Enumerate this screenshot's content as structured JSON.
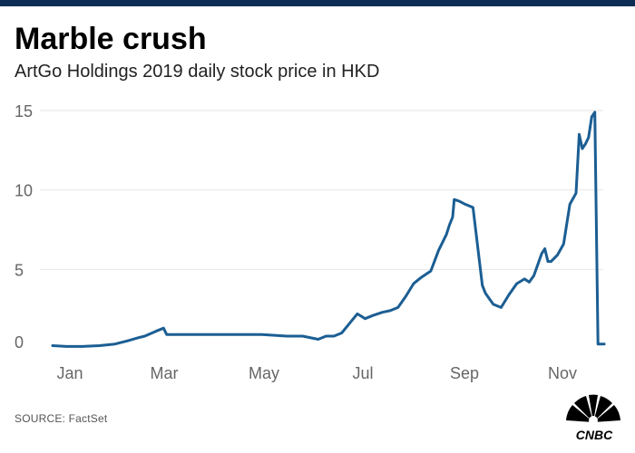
{
  "header": {
    "title": "Marble crush",
    "subtitle": "ArtGo Holdings 2019 daily stock price in HKD"
  },
  "footer": {
    "source": "SOURCE: FactSet",
    "logo_text": "CNBC"
  },
  "colors": {
    "line": "#1b5e93",
    "top_bar": "#0d2d55",
    "grid": "#e6e6e6",
    "tick": "#666666"
  },
  "chart_data": {
    "type": "line",
    "title": "Marble crush",
    "subtitle": "ArtGo Holdings 2019 daily stock price in HKD",
    "xlabel": "",
    "ylabel": "",
    "x_tick_labels": [
      "Jan",
      "Mar",
      "May",
      "Jul",
      "Sep",
      "Nov"
    ],
    "y_ticks": [
      0,
      5,
      10,
      15
    ],
    "ylim": [
      0,
      15
    ],
    "xlim": [
      "2019-01-01",
      "2019-12-31"
    ],
    "grid": true,
    "legend": "none",
    "series": [
      {
        "x": [
          "2019-01-01",
          "2019-01-10",
          "2019-01-20",
          "2019-01-31",
          "2019-02-10",
          "2019-02-18",
          "2019-02-25",
          "2019-03-01",
          "2019-03-08",
          "2019-03-13",
          "2019-03-15",
          "2019-03-20",
          "2019-03-31",
          "2019-04-15",
          "2019-04-30",
          "2019-05-15",
          "2019-05-31",
          "2019-06-10",
          "2019-06-20",
          "2019-06-25",
          "2019-06-30",
          "2019-07-05",
          "2019-07-10",
          "2019-07-15",
          "2019-07-20",
          "2019-07-25",
          "2019-07-31",
          "2019-08-05",
          "2019-08-10",
          "2019-08-15",
          "2019-08-20",
          "2019-08-25",
          "2019-08-31",
          "2019-09-05",
          "2019-09-10",
          "2019-09-12",
          "2019-09-14",
          "2019-09-15",
          "2019-09-18",
          "2019-09-22",
          "2019-09-27",
          "2019-10-03",
          "2019-10-05",
          "2019-10-10",
          "2019-10-15",
          "2019-10-20",
          "2019-10-25",
          "2019-10-30",
          "2019-11-02",
          "2019-11-05",
          "2019-11-10",
          "2019-11-12",
          "2019-11-14",
          "2019-11-16",
          "2019-11-20",
          "2019-11-24",
          "2019-11-28",
          "2019-12-02",
          "2019-12-04",
          "2019-12-06",
          "2019-12-08",
          "2019-12-10",
          "2019-12-12",
          "2019-12-14",
          "2019-12-16",
          "2019-12-19",
          "2019-12-20"
        ],
        "y": [
          0.2,
          0.15,
          0.15,
          0.2,
          0.3,
          0.5,
          0.7,
          0.8,
          1.1,
          1.3,
          0.9,
          0.9,
          0.9,
          0.9,
          0.9,
          0.9,
          0.8,
          0.8,
          0.6,
          0.8,
          0.8,
          1.0,
          1.6,
          2.2,
          1.9,
          2.1,
          2.3,
          2.4,
          2.6,
          3.3,
          4.1,
          4.5,
          4.9,
          6.2,
          7.2,
          7.8,
          8.3,
          9.4,
          9.3,
          9.1,
          8.9,
          4.0,
          3.5,
          2.8,
          2.6,
          3.4,
          4.1,
          4.4,
          4.2,
          4.6,
          6.0,
          6.3,
          5.5,
          5.5,
          5.9,
          6.6,
          9.1,
          9.8,
          13.5,
          12.6,
          12.9,
          13.3,
          14.6,
          14.9,
          0.3,
          0.3,
          0.3
        ]
      }
    ]
  }
}
